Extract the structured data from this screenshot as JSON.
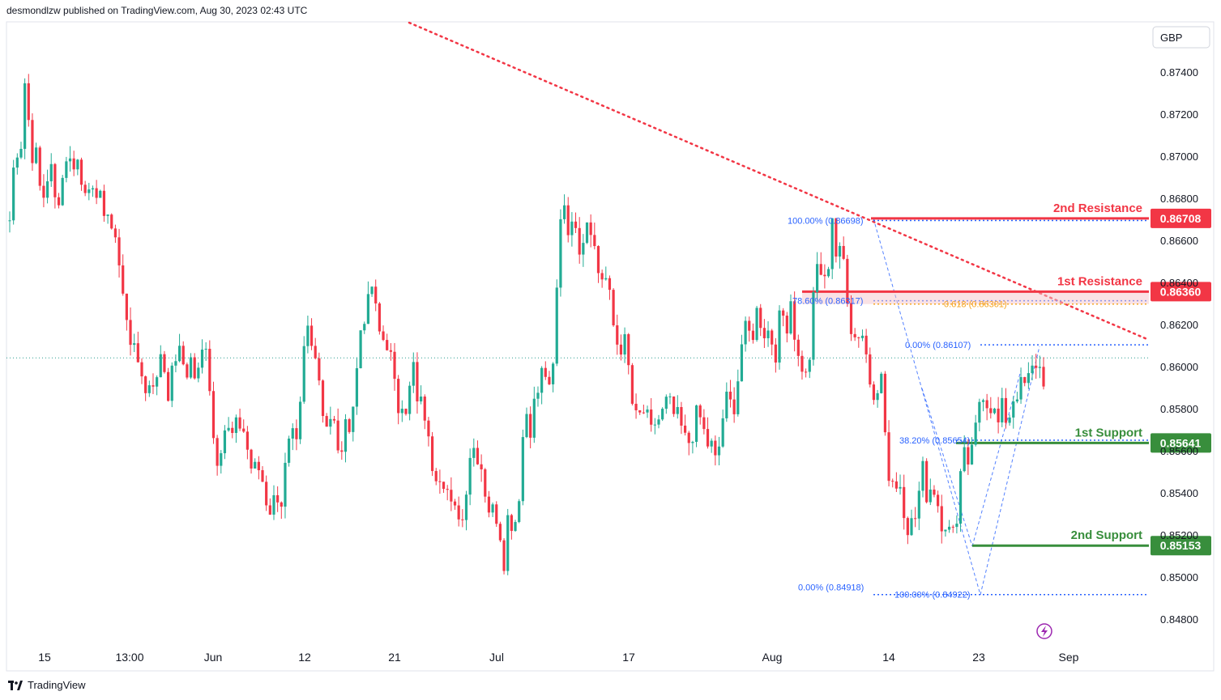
{
  "header": {
    "publisher_line": "desmondlzw published on TradingView.com, Aug 30, 2023 02:43 UTC"
  },
  "footer": {
    "brand": "TradingView",
    "icon": "tradingview-logo-icon"
  },
  "colors": {
    "up": "#22ab94",
    "down": "#f23645",
    "resistance": "#f23645",
    "support": "#388e3c",
    "fib": "#2962ff",
    "trend": "#f23645",
    "fib618": "#f5a623"
  },
  "chart_data": {
    "type": "candlestick",
    "currency": "GBP",
    "ylim": [
      0.8465,
      0.8761
    ],
    "y_ticks": [
      "0.87400",
      "0.87200",
      "0.87000",
      "0.86800",
      "0.86600",
      "0.86400",
      "0.86200",
      "0.86000",
      "0.85800",
      "0.85600",
      "0.85400",
      "0.85200",
      "0.85000",
      "0.84800"
    ],
    "x_ticks": [
      "15",
      "13:00",
      "Jun",
      "12",
      "21",
      "Jul",
      "17",
      "Aug",
      "14",
      "23",
      "Sep"
    ],
    "last_price": 0.86045,
    "levels": [
      {
        "label": "2nd Resistance",
        "value": "0.86708",
        "kind": "resistance"
      },
      {
        "label": "1st Resistance",
        "value": "0.86360",
        "kind": "resistance"
      },
      {
        "label": "1st Support",
        "value": "0.85641",
        "kind": "support"
      },
      {
        "label": "2nd Support",
        "value": "0.85153",
        "kind": "support"
      }
    ],
    "fib_labels": [
      {
        "text": "100.00% (0.86698)"
      },
      {
        "text": "78.60% (0.86317)"
      },
      {
        "text": "0.618 (0.86301)"
      },
      {
        "text": "0.00% (0.86107)"
      },
      {
        "text": "38.20% (0.85654)"
      },
      {
        "text": "0.00% (0.84918)"
      },
      {
        "text": "100.00% (0.84922)"
      }
    ],
    "price_path": [
      [
        0.867,
        0.869
      ],
      [
        0.8728,
        0.871
      ],
      [
        0.8695,
        0.8718
      ],
      [
        0.8678,
        0.8685
      ],
      [
        0.8705,
        0.869
      ],
      [
        0.8678,
        0.87
      ],
      [
        0.8688,
        0.8672
      ],
      [
        0.866,
        0.865
      ],
      [
        0.862,
        0.863
      ],
      [
        0.8588,
        0.858
      ],
      [
        0.8595,
        0.862
      ],
      [
        0.8605,
        0.861
      ],
      [
        0.86,
        0.8585
      ],
      [
        0.8605,
        0.858
      ],
      [
        0.856,
        0.8548
      ],
      [
        0.8575,
        0.8565
      ],
      [
        0.856,
        0.855
      ],
      [
        0.854,
        0.853
      ],
      [
        0.8535,
        0.8545
      ],
      [
        0.857,
        0.86
      ],
      [
        0.861,
        0.859
      ],
      [
        0.8585,
        0.857
      ],
      [
        0.8555,
        0.856
      ],
      [
        0.8588,
        0.8605
      ],
      [
        0.864,
        0.863
      ],
      [
        0.8612,
        0.86
      ],
      [
        0.8585,
        0.86
      ],
      [
        0.8595,
        0.858
      ],
      [
        0.856,
        0.8555
      ],
      [
        0.8545,
        0.8535
      ],
      [
        0.8528,
        0.8545
      ],
      [
        0.856,
        0.855
      ],
      [
        0.8538,
        0.8528
      ],
      [
        0.8512,
        0.853
      ],
      [
        0.8545,
        0.8575
      ],
      [
        0.8588,
        0.86
      ],
      [
        0.8595,
        0.863
      ],
      [
        0.8675,
        0.869
      ],
      [
        0.8668,
        0.865
      ],
      [
        0.866,
        0.8648
      ],
      [
        0.863,
        0.862
      ],
      [
        0.8605,
        0.859
      ],
      [
        0.8575,
        0.8565
      ],
      [
        0.8572,
        0.8575
      ],
      [
        0.8585,
        0.858
      ],
      [
        0.8565,
        0.8558
      ],
      [
        0.8575,
        0.857
      ],
      [
        0.856,
        0.8575
      ],
      [
        0.858,
        0.8595
      ],
      [
        0.861,
        0.862
      ],
      [
        0.863,
        0.862
      ],
      [
        0.8605,
        0.862
      ],
      [
        0.863,
        0.8615
      ],
      [
        0.86,
        0.8625
      ],
      [
        0.864,
        0.8665
      ],
      [
        0.8668,
        0.865
      ],
      [
        0.8628,
        0.8615
      ],
      [
        0.8608,
        0.8595
      ],
      [
        0.8588,
        0.856
      ],
      [
        0.8545,
        0.853
      ],
      [
        0.8528,
        0.854
      ],
      [
        0.855,
        0.854
      ],
      [
        0.8532,
        0.8518
      ],
      [
        0.852,
        0.854
      ],
      [
        0.856,
        0.8575
      ],
      [
        0.8585,
        0.858
      ],
      [
        0.8575,
        0.8585
      ],
      [
        0.8585,
        0.8588
      ],
      [
        0.8595,
        0.8605
      ],
      [
        0.86,
        0.8605
      ]
    ]
  }
}
